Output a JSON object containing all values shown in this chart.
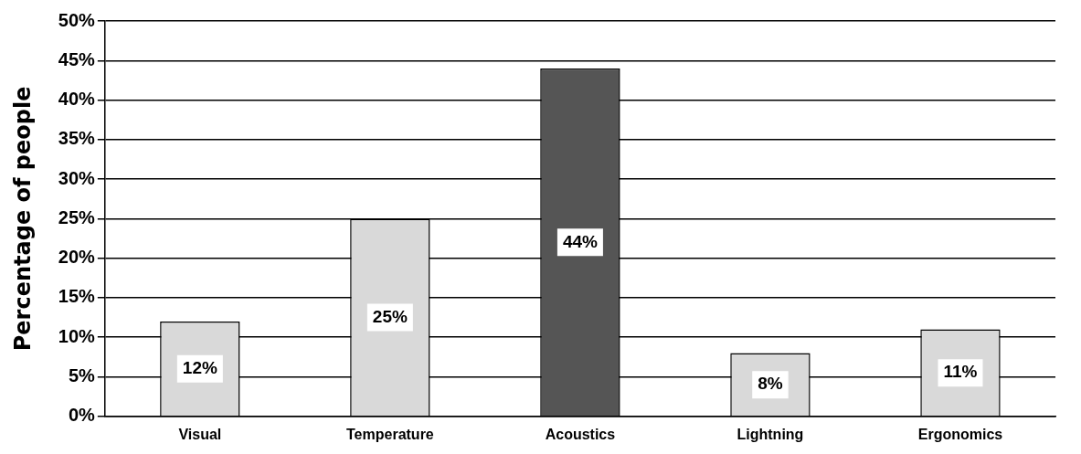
{
  "chart_data": {
    "type": "bar",
    "ylabel": "Percentage of people",
    "categories": [
      "Visual",
      "Temperature",
      "Acoustics",
      "Lightning",
      "Ergonomics"
    ],
    "values": [
      12,
      25,
      44,
      8,
      11
    ],
    "colors": [
      "#d9d9d9",
      "#d9d9d9",
      "#555555",
      "#d9d9d9",
      "#d9d9d9"
    ],
    "value_labels": [
      "12%",
      "25%",
      "44%",
      "8%",
      "11%"
    ],
    "ylim": [
      0,
      50
    ],
    "yticks": [
      {
        "value": 0,
        "label": "0%"
      },
      {
        "value": 5,
        "label": "5%"
      },
      {
        "value": 10,
        "label": "10%"
      },
      {
        "value": 15,
        "label": "15%"
      },
      {
        "value": 20,
        "label": "20%"
      },
      {
        "value": 25,
        "label": "25%"
      },
      {
        "value": 30,
        "label": "30%"
      },
      {
        "value": 35,
        "label": "35%"
      },
      {
        "value": 40,
        "label": "40%"
      },
      {
        "value": 45,
        "label": "45%"
      },
      {
        "value": 50,
        "label": "50%"
      }
    ],
    "grid": "y",
    "legend": false
  }
}
